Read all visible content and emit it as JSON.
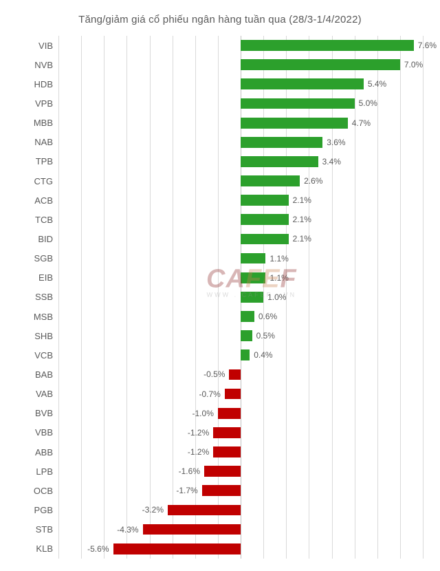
{
  "chart": {
    "type": "bar-horizontal",
    "title": "Tăng/giảm giá cổ phiếu ngân hàng tuần qua (28/3-1/4/2022)",
    "title_color": "#595959",
    "title_fontsize": 15,
    "background_color": "#ffffff",
    "grid_color": "#d9d9d9",
    "axis_color": "#bfbfbf",
    "label_color": "#595959",
    "label_fontsize": 13,
    "value_fontsize": 12,
    "positive_color": "#2ca02c",
    "negative_color": "#c00000",
    "xlim": [
      -8,
      8
    ],
    "xtick_step": 1,
    "bar_height_ratio": 0.56,
    "categories": [
      "VIB",
      "NVB",
      "HDB",
      "VPB",
      "MBB",
      "NAB",
      "TPB",
      "CTG",
      "ACB",
      "TCB",
      "BID",
      "SGB",
      "EIB",
      "SSB",
      "MSB",
      "SHB",
      "VCB",
      "BAB",
      "VAB",
      "BVB",
      "VBB",
      "ABB",
      "LPB",
      "OCB",
      "PGB",
      "STB",
      "KLB"
    ],
    "values": [
      7.6,
      7.0,
      5.4,
      5.0,
      4.7,
      3.6,
      3.4,
      2.6,
      2.1,
      2.1,
      2.1,
      1.1,
      1.1,
      1.0,
      0.6,
      0.5,
      0.4,
      -0.5,
      -0.7,
      -1.0,
      -1.2,
      -1.2,
      -1.6,
      -1.7,
      -3.2,
      -4.3,
      -5.6
    ],
    "value_suffix": "%"
  },
  "watermark": {
    "main": "CAFEF",
    "sub": "WWW . CAFEF . VN"
  }
}
